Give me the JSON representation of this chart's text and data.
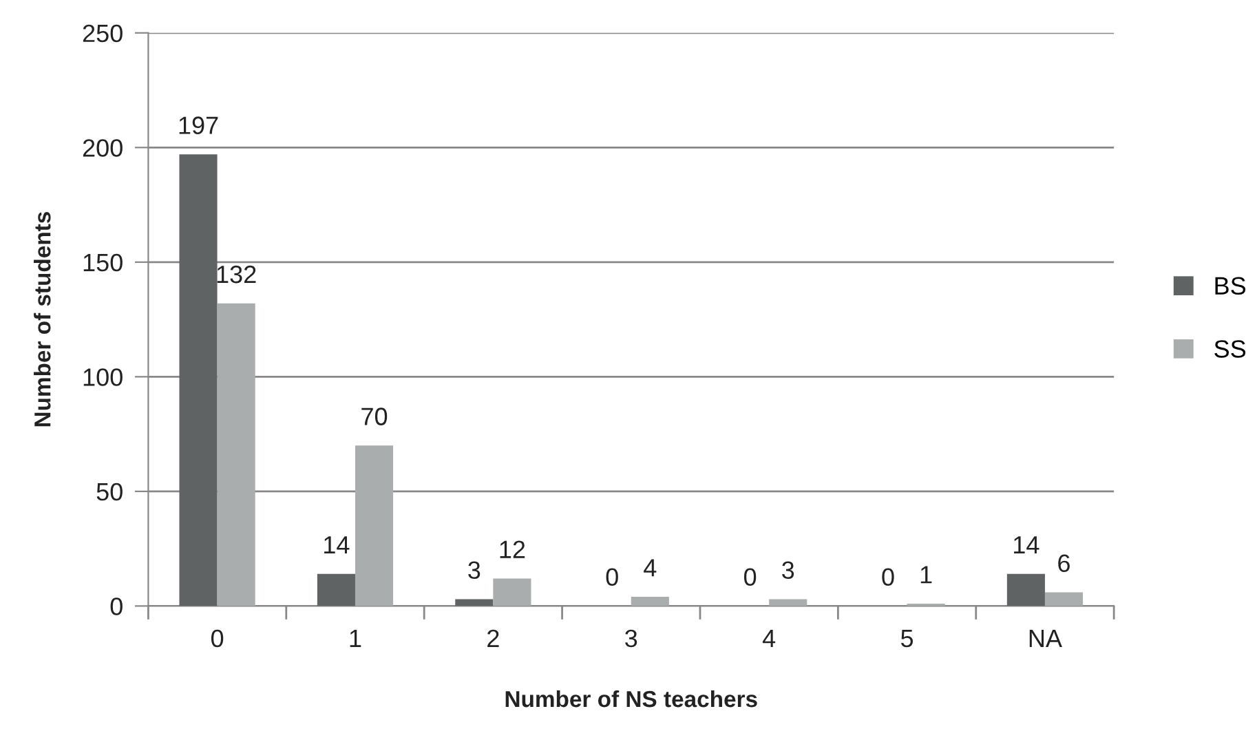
{
  "chart_data": {
    "type": "bar",
    "xlabel": "Number of NS teachers",
    "ylabel": "Number of students",
    "categories": [
      "0",
      "1",
      "2",
      "3",
      "4",
      "5",
      "NA"
    ],
    "series": [
      {
        "name": "BS",
        "color": "#5f6363",
        "values": [
          197,
          14,
          3,
          0,
          0,
          0,
          14
        ]
      },
      {
        "name": "SS",
        "color": "#aaadad",
        "values": [
          132,
          70,
          12,
          4,
          3,
          1,
          6
        ]
      }
    ],
    "ylim": [
      0,
      250
    ],
    "yticks": [
      0,
      50,
      100,
      150,
      200,
      250
    ],
    "grid": "y",
    "legend": "right",
    "data_labels": true
  }
}
